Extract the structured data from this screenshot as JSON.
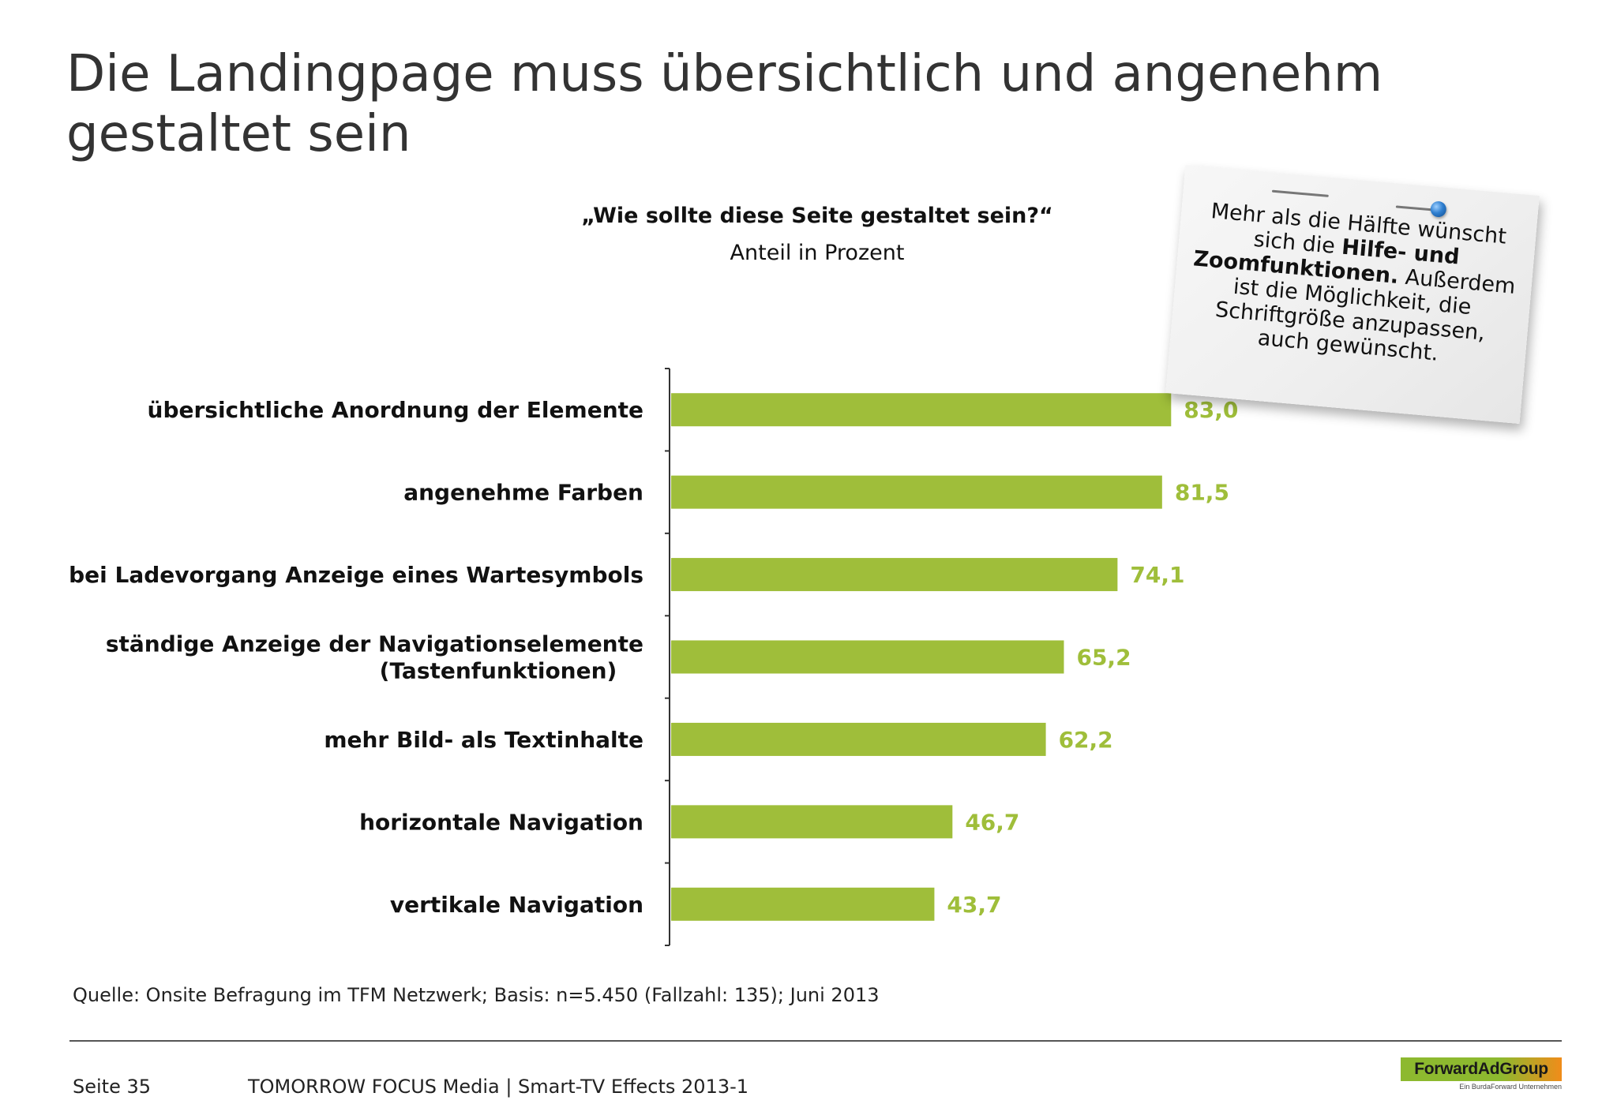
{
  "title": "Die Landingpage muss übersichtlich und angenehm gestaltet sein",
  "note": {
    "part1": "Mehr als die Hälfte wünscht sich die ",
    "bold": "Hilfe- und Zoomfunktionen.",
    "part2": " Außerdem ist die Möglichkeit, die Schriftgröße anzupassen, auch gewünscht."
  },
  "source": "Quelle: Onsite Befragung im TFM Netzwerk; Basis: n=5.450 (Fallzahl: 135); Juni 2013",
  "footer": {
    "page": "Seite 35",
    "text": "TOMORROW FOCUS Media  |  Smart-TV Effects 2013-1"
  },
  "logo": {
    "name": "ForwardAdGroup",
    "tagline": "Ein BurdaForward Unternehmen"
  },
  "colors": {
    "bar": "#9fbe3a",
    "value_label": "#9fbe3a",
    "title": "#333333"
  },
  "chart_data": {
    "type": "bar",
    "orientation": "horizontal",
    "title": "„Wie sollte diese Seite gestaltet sein?“",
    "subtitle": "Anteil in Prozent",
    "categories": [
      "übersichtliche Anordnung der Elemente",
      "angenehme Farben",
      "bei Ladevorgang Anzeige eines Wartesymbols",
      "ständige Anzeige der Navigationselemente (Tastenfunktionen)",
      "mehr Bild- als Textinhalte",
      "horizontale Navigation",
      "vertikale Navigation"
    ],
    "category_lines": [
      [
        "übersichtliche Anordnung der Elemente"
      ],
      [
        "angenehme Farben"
      ],
      [
        "bei Ladevorgang Anzeige eines Wartesymbols"
      ],
      [
        "ständige Anzeige der Navigationselemente",
        "(Tastenfunktionen)"
      ],
      [
        "mehr Bild- als Textinhalte"
      ],
      [
        "horizontale Navigation"
      ],
      [
        "vertikale Navigation"
      ]
    ],
    "values": [
      83.0,
      81.5,
      74.1,
      65.2,
      62.2,
      46.7,
      43.7
    ],
    "value_labels": [
      "83,0",
      "81,5",
      "74,1",
      "65,2",
      "62,2",
      "46,7",
      "43,7"
    ],
    "xlim": [
      0,
      100
    ],
    "grid": false,
    "legend": "none"
  }
}
